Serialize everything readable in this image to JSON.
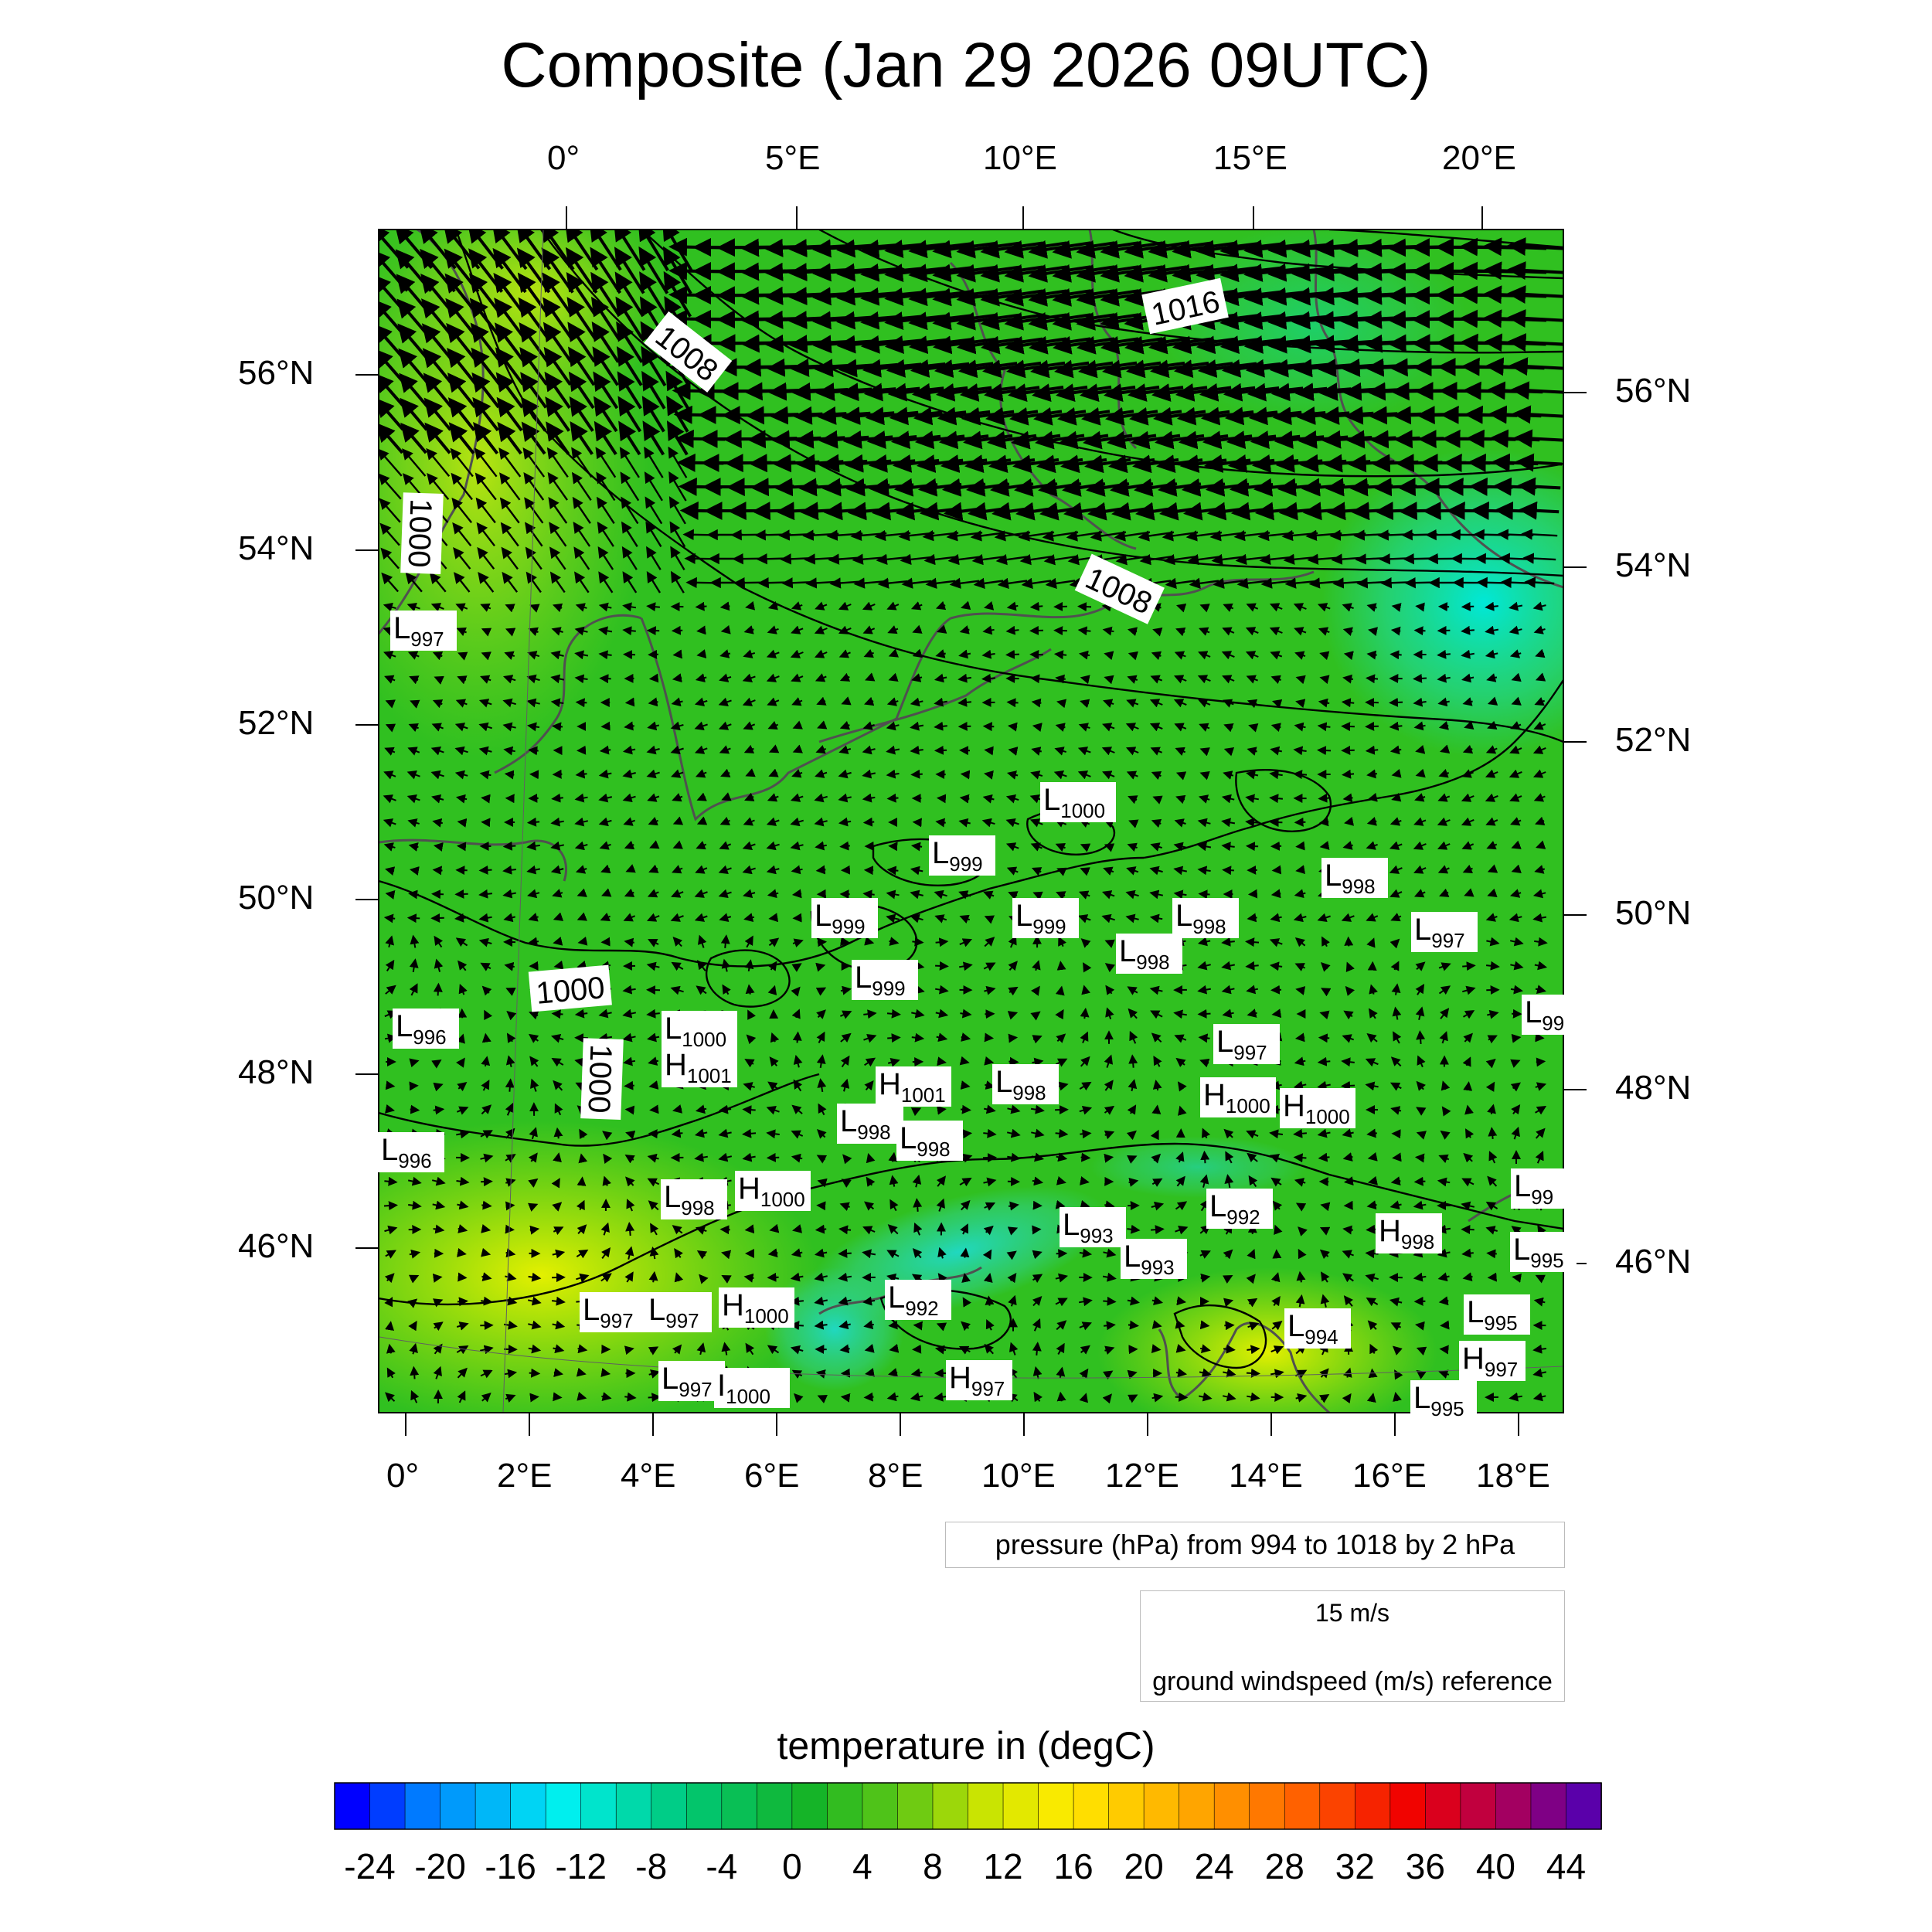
{
  "title": "Composite (Jan 29 2026 09UTC)",
  "top_lon_labels": [
    "0°",
    "5°E",
    "10°E",
    "15°E",
    "20°E"
  ],
  "bottom_lon_labels": [
    "0°",
    "2°E",
    "4°E",
    "6°E",
    "8°E",
    "10°E",
    "12°E",
    "14°E",
    "16°E",
    "18°E"
  ],
  "left_lat_labels": [
    "56°N",
    "54°N",
    "52°N",
    "50°N",
    "48°N",
    "46°N"
  ],
  "right_lat_labels": [
    "56°N",
    "54°N",
    "52°N",
    "50°N",
    "48°N",
    "46°N"
  ],
  "isobar_labels": [
    "1016",
    "1008",
    "1008",
    "1000",
    "1000",
    "1000"
  ],
  "pressure_centers": [
    {
      "t": "L",
      "v": "997"
    },
    {
      "t": "L",
      "v": "996"
    },
    {
      "t": "L",
      "v": "996"
    },
    {
      "t": "L",
      "v": "1000"
    },
    {
      "t": "H",
      "v": "1001"
    },
    {
      "t": "L",
      "v": "1000"
    },
    {
      "t": "L",
      "v": "999"
    },
    {
      "t": "L",
      "v": "999"
    },
    {
      "t": "L",
      "v": "999"
    },
    {
      "t": "L",
      "v": "999"
    },
    {
      "t": "L",
      "v": "998"
    },
    {
      "t": "L",
      "v": "998"
    },
    {
      "t": "L",
      "v": "998"
    },
    {
      "t": "L",
      "v": "997"
    },
    {
      "t": "L",
      "v": "99"
    },
    {
      "t": "L",
      "v": "997"
    },
    {
      "t": "H",
      "v": "1001"
    },
    {
      "t": "L",
      "v": "998"
    },
    {
      "t": "H",
      "v": "1000"
    },
    {
      "t": "H",
      "v": "1000"
    },
    {
      "t": "L",
      "v": "998"
    },
    {
      "t": "L",
      "v": "998"
    },
    {
      "t": "L",
      "v": "998"
    },
    {
      "t": "H",
      "v": "1000"
    },
    {
      "t": "L",
      "v": "993"
    },
    {
      "t": "L",
      "v": "993"
    },
    {
      "t": "L",
      "v": "992"
    },
    {
      "t": "H",
      "v": "998"
    },
    {
      "t": "L",
      "v": "99"
    },
    {
      "t": "L",
      "v": "995"
    },
    {
      "t": "L",
      "v": "997"
    },
    {
      "t": "L",
      "v": "997"
    },
    {
      "t": "H",
      "v": "1000"
    },
    {
      "t": "L",
      "v": "992"
    },
    {
      "t": "L",
      "v": "994"
    },
    {
      "t": "L",
      "v": "995"
    },
    {
      "t": "H",
      "v": "997"
    },
    {
      "t": "L",
      "v": "997"
    },
    {
      "t": "I",
      "v": "1000"
    },
    {
      "t": "H",
      "v": "997"
    },
    {
      "t": "L",
      "v": "995"
    }
  ],
  "pressure_legend": "pressure (hPa) from 994 to 1018 by 2 hPa",
  "wind_legend": {
    "speed": "15 m/s",
    "label": "ground windspeed (m/s) reference"
  },
  "colorbar": {
    "title": "temperature in (degC)",
    "labels": [
      "-24",
      "-20",
      "-16",
      "-12",
      "-8",
      "-4",
      "0",
      "4",
      "8",
      "12",
      "16",
      "20",
      "24",
      "28",
      "32",
      "36",
      "40",
      "44"
    ],
    "min": -26,
    "max": 46,
    "step": 2
  }
}
